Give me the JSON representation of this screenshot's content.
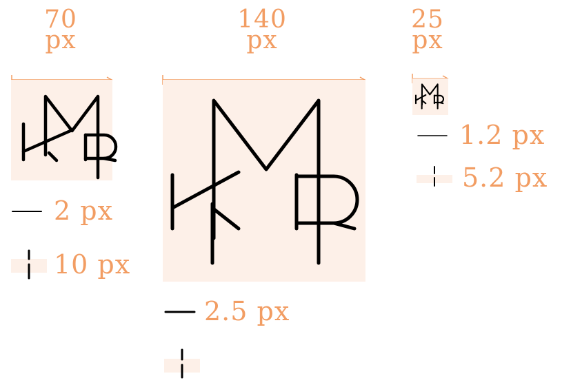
{
  "colors": {
    "accent": "#f29d63",
    "panel": "#fdf0e8",
    "mark": "#000000"
  },
  "variants": [
    {
      "size_value": "70",
      "size_unit": "px",
      "stroke_width_label": "2 px",
      "spacing_label": "10 px"
    },
    {
      "size_value": "140",
      "size_unit": "px",
      "stroke_width_label": "2.5 px",
      "spacing_label": ""
    },
    {
      "size_value": "25",
      "size_unit": "px",
      "stroke_width_label": "1.2 px",
      "spacing_label": "5.2 px"
    }
  ]
}
